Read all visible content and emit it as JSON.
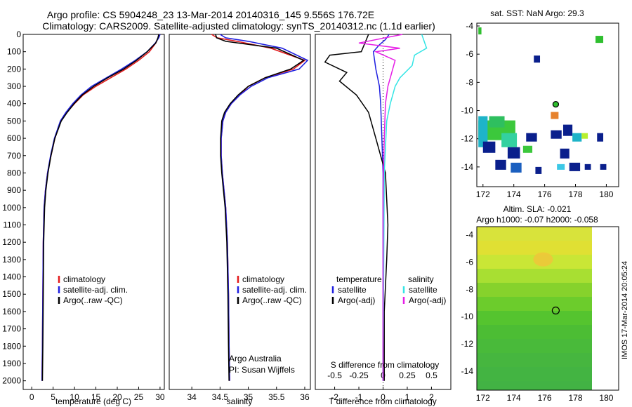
{
  "header": {
    "line1": "Argo profile: CS 5904248_23 13-Mar-2014 20140316_145 9.556S 176.72E",
    "line2": "Climatology: CARS2009. Satellite-adjusted climatology: synTS_20140312.nc (1.1d earlier)"
  },
  "colors": {
    "climatology": "#e31a1c",
    "satellite": "#1f1fe0",
    "argo": "#000000",
    "sat_salinity": "#33e5e5",
    "argo_salinity": "#e61ee6"
  },
  "chart_data": [
    {
      "type": "line",
      "id": "temperature",
      "xlabel": "temperature (deg C)",
      "xlim": [
        -2,
        31
      ],
      "ylim": [
        0,
        2050
      ],
      "xticks": [
        0,
        5,
        10,
        15,
        20,
        25,
        30
      ],
      "yticks": [
        0,
        100,
        200,
        300,
        400,
        500,
        600,
        700,
        800,
        900,
        1000,
        1100,
        1200,
        1300,
        1400,
        1500,
        1600,
        1700,
        1800,
        1900,
        2000
      ],
      "legend": [
        "climatology",
        "satellite-adj. clim.",
        "Argo(..raw -QC)"
      ],
      "series": [
        {
          "name": "climatology",
          "x": [
            29.8,
            29.6,
            29,
            27.5,
            25,
            22,
            18.5,
            15,
            12,
            10,
            8.2,
            6.8,
            5.4,
            4.5,
            3.7,
            3.2,
            2.9,
            2.7,
            2.6,
            2.5,
            2.4
          ],
          "y": [
            0,
            20,
            50,
            100,
            150,
            200,
            250,
            300,
            350,
            400,
            450,
            500,
            600,
            700,
            800,
            900,
            1000,
            1200,
            1500,
            1800,
            2000
          ]
        },
        {
          "name": "satellite",
          "x": [
            30,
            29.7,
            28.9,
            27,
            24.2,
            21,
            17.5,
            14,
            11.5,
            9.6,
            8,
            6.7,
            5.3,
            4.4,
            3.7,
            3.2,
            2.9,
            2.7,
            2.6,
            2.5,
            2.4
          ],
          "y": [
            0,
            20,
            50,
            100,
            150,
            200,
            250,
            300,
            350,
            400,
            450,
            500,
            600,
            700,
            800,
            900,
            1000,
            1200,
            1500,
            1800,
            2000
          ]
        },
        {
          "name": "argo",
          "x": [
            29.7,
            29.5,
            29,
            27,
            24.5,
            21.5,
            17.8,
            14.5,
            11.8,
            9.9,
            8.3,
            6.9,
            5.4,
            4.5,
            3.8,
            3.3,
            3,
            2.8,
            2.7,
            2.6,
            2.5
          ],
          "y": [
            0,
            20,
            50,
            100,
            150,
            200,
            250,
            300,
            350,
            400,
            450,
            500,
            600,
            700,
            800,
            900,
            1000,
            1200,
            1500,
            1800,
            2000
          ]
        }
      ]
    },
    {
      "type": "line",
      "id": "salinity",
      "xlabel": "salinity",
      "xlim": [
        33.6,
        36.1
      ],
      "ylim": [
        0,
        2050
      ],
      "xticks": [
        34,
        34.5,
        35,
        35.5,
        36
      ],
      "legend": [
        "climatology",
        "satellite-adj. clim.",
        "Argo(..raw -QC)"
      ],
      "note1": "Argo Australia",
      "note2": "PI: Susan Wijffels",
      "series": [
        {
          "name": "climatology",
          "x": [
            34.35,
            34.45,
            34.8,
            35.4,
            36,
            35.8,
            35.3,
            35,
            34.85,
            34.7,
            34.6,
            34.55,
            34.52,
            34.52,
            34.54,
            34.57,
            34.6,
            34.63,
            34.65,
            34.66,
            34.67
          ],
          "y": [
            0,
            20,
            40,
            80,
            150,
            200,
            250,
            300,
            350,
            400,
            450,
            500,
            600,
            700,
            800,
            900,
            1000,
            1200,
            1500,
            1800,
            2000
          ]
        },
        {
          "name": "satellite",
          "x": [
            34.5,
            34.6,
            35,
            35.6,
            36.05,
            35.9,
            35.35,
            35.05,
            34.85,
            34.7,
            34.6,
            34.55,
            34.52,
            34.52,
            34.54,
            34.57,
            34.6,
            34.63,
            34.65,
            34.66,
            34.67
          ],
          "y": [
            0,
            20,
            40,
            80,
            150,
            200,
            250,
            300,
            350,
            400,
            450,
            500,
            600,
            700,
            800,
            900,
            1000,
            1200,
            1500,
            1800,
            2000
          ]
        },
        {
          "name": "argo",
          "x": [
            34.42,
            34.44,
            34.6,
            35.5,
            35.98,
            35.75,
            35.3,
            35,
            34.82,
            34.68,
            34.58,
            34.53,
            34.51,
            34.51,
            34.53,
            34.56,
            34.59,
            34.62,
            34.64,
            34.65,
            34.66
          ],
          "y": [
            0,
            20,
            40,
            80,
            150,
            200,
            250,
            300,
            350,
            400,
            450,
            500,
            600,
            700,
            800,
            900,
            1000,
            1200,
            1500,
            1800,
            2000
          ]
        }
      ]
    },
    {
      "type": "line",
      "id": "difference",
      "xlabel": "T difference from climatology",
      "xlabel_top": "S difference from climatology",
      "xlim": [
        -2.8,
        2.8
      ],
      "ylim": [
        0,
        2050
      ],
      "xticks": [
        "-2",
        "-1",
        "0",
        "1",
        "2"
      ],
      "xticks_top": [
        "-0.5",
        "-0.25",
        "0",
        "0.25",
        "0.5"
      ],
      "legend_temperature": {
        "title": "temperature",
        "satellite": "satellite",
        "argo": "Argo(-adj)"
      },
      "legend_salinity": {
        "title": "salinity",
        "satellite": "satellite",
        "argo": "Argo(-adj)"
      },
      "series": [
        {
          "name": "T satellite",
          "x": [
            0.25,
            0.1,
            -0.15,
            -0.4,
            -0.3,
            -0.15,
            -0.1,
            -0.05,
            0,
            0,
            0
          ],
          "y": [
            0,
            30,
            60,
            100,
            200,
            300,
            400,
            600,
            800,
            1200,
            2000
          ]
        },
        {
          "name": "T Argo",
          "x": [
            -0.6,
            -0.9,
            -2.2,
            -2.4,
            -1.5,
            -1.8,
            -1.1,
            -0.6,
            -0.3,
            0.1,
            0.2,
            0.15,
            0.05,
            0.05
          ],
          "y": [
            0,
            100,
            120,
            160,
            220,
            270,
            350,
            450,
            600,
            800,
            1100,
            1300,
            1600,
            2000
          ]
        },
        {
          "name": "S satellite",
          "x": [
            1.6,
            1.8,
            1.3,
            1.2,
            0.7,
            0.5,
            0.3,
            0.15,
            0.05,
            0
          ],
          "y": [
            0,
            80,
            120,
            180,
            250,
            300,
            400,
            500,
            800,
            2000
          ]
        },
        {
          "name": "S Argo",
          "x": [
            0.8,
            -1.0,
            0.7,
            -0.3,
            0.5,
            0.2,
            0.1,
            0.05,
            0,
            0
          ],
          "y": [
            0,
            50,
            80,
            100,
            150,
            300,
            400,
            600,
            900,
            2000
          ]
        }
      ]
    },
    {
      "type": "heatmap",
      "id": "sst_map",
      "title": "sat. SST: NaN Argo: 29.3",
      "xticks": [
        "172",
        "174",
        "176",
        "178",
        "180"
      ],
      "yticks": [
        "-4",
        "-6",
        "-8",
        "-10",
        "-12",
        "-14"
      ],
      "xlim": [
        171.6,
        180.8
      ],
      "ylim": [
        -15.4,
        -3.8
      ],
      "argo_position": [
        176.72,
        -9.556
      ]
    },
    {
      "type": "heatmap",
      "id": "sla_map",
      "title": "Altim. SLA: -0.021",
      "subtitle": "Argo h1000: -0.07 h2000: -0.058",
      "xticks": [
        "172",
        "174",
        "176",
        "178",
        "180"
      ],
      "yticks": [
        "-4",
        "-6",
        "-8",
        "-10",
        "-12",
        "-14"
      ],
      "xlim": [
        171.6,
        180.8
      ],
      "ylim": [
        -15.4,
        -3.4
      ],
      "argo_position": [
        176.72,
        -9.556
      ]
    }
  ],
  "footer": {
    "stamp": "IMOS 17-Mar-2014 20:05:24"
  }
}
